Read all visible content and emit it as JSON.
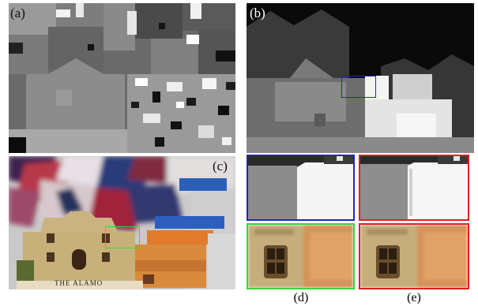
{
  "figure": {
    "panel_labels": {
      "a": "(a)",
      "b": "(b)",
      "c": "(c)"
    },
    "captions": {
      "d": "(d)",
      "e": "(e)"
    },
    "scene_sign_text": "THE ALAMO",
    "colors": {
      "blue_box": "#2222c8",
      "red_box": "#e02020",
      "green_box": "#36d836"
    }
  }
}
